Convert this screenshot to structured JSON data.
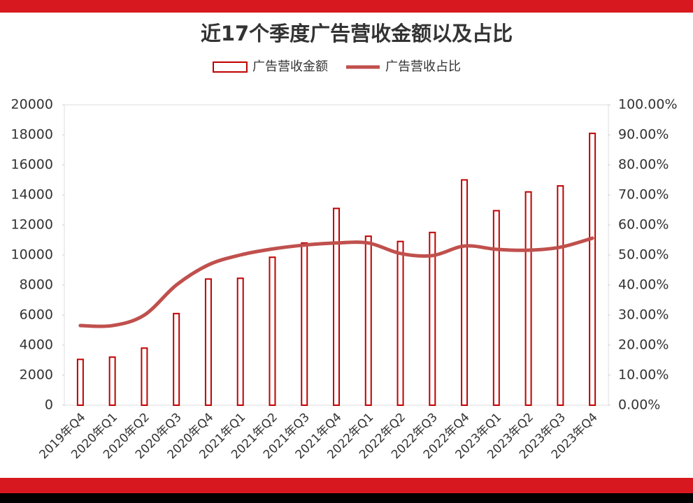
{
  "chart_data": {
    "type": "bar-line",
    "title": "近17个季度广告营收金额以及占比",
    "categories": [
      "2019年Q4",
      "2020年Q1",
      "2020年Q2",
      "2020年Q3",
      "2020年Q4",
      "2021年Q1",
      "2021年Q2",
      "2021年Q3",
      "2021年Q4",
      "2022年Q1",
      "2022年Q2",
      "2022年Q3",
      "2022年Q4",
      "2023年Q1",
      "2023年Q2",
      "2023年Q3",
      "2023年Q4"
    ],
    "series": [
      {
        "name": "广告营收金额",
        "type": "bar",
        "color": "#c00000",
        "values": [
          3050,
          3200,
          3800,
          6100,
          8400,
          8450,
          9850,
          10800,
          13100,
          11250,
          10900,
          11500,
          15000,
          12950,
          14200,
          14600,
          18100
        ]
      },
      {
        "name": "广告营收占比",
        "type": "line",
        "axis": "y2",
        "color": "#c0504d",
        "values": [
          26.5,
          26.5,
          30,
          40,
          46.7,
          50,
          52,
          53.3,
          54,
          54,
          50.5,
          49.8,
          53,
          51.9,
          51.6,
          52.6,
          55.6
        ]
      }
    ],
    "ylim": [
      0,
      20000
    ],
    "yticks": [
      0,
      2000,
      4000,
      6000,
      8000,
      10000,
      12000,
      14000,
      16000,
      18000,
      20000
    ],
    "y2lim": [
      0,
      100
    ],
    "y2ticks": [
      {
        "value": 0,
        "label": "0.00%"
      },
      {
        "value": 10,
        "label": "10.00%"
      },
      {
        "value": 20,
        "label": "20.00%"
      },
      {
        "value": 30,
        "label": "30.00%"
      },
      {
        "value": 40,
        "label": "40.00%"
      },
      {
        "value": 50,
        "label": "50.00%"
      },
      {
        "value": 60,
        "label": "60.00%"
      },
      {
        "value": 70,
        "label": "70.00%"
      },
      {
        "value": 80,
        "label": "80.00%"
      },
      {
        "value": 90,
        "label": "90.00%"
      },
      {
        "value": 100,
        "label": "100.00%"
      }
    ]
  }
}
